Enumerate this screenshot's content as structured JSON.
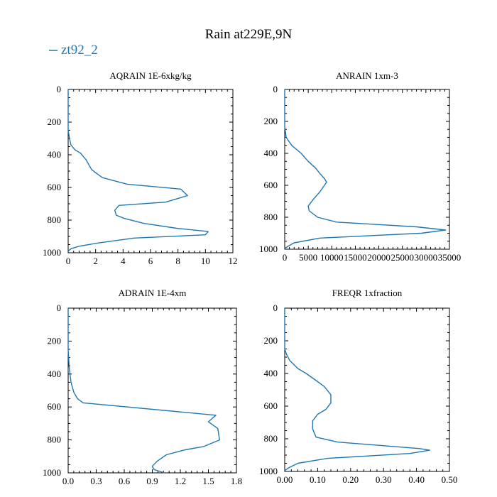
{
  "title": "Rain at229E,9N",
  "legend": {
    "label": "zt92_2",
    "color": "#1f77b4"
  },
  "chart_data": [
    {
      "type": "line",
      "title": "AQRAIN  1E-6xkg/kg",
      "xlim": [
        0,
        12
      ],
      "ylim": [
        0,
        1000
      ],
      "y_inverted": true,
      "x_ticks": [
        "0",
        "2",
        "4",
        "6",
        "8",
        "10",
        "12"
      ],
      "x_tick_values": [
        0,
        2,
        4,
        6,
        8,
        10,
        12
      ],
      "y_ticks": [
        "0",
        "200",
        "400",
        "600",
        "800",
        "1000"
      ],
      "y_tick_values": [
        0,
        200,
        400,
        600,
        800,
        1000
      ],
      "series": [
        {
          "name": "zt92_2",
          "x": [
            0,
            0,
            0.1,
            0.2,
            0.5,
            0.9,
            1.1,
            1.3,
            1.5,
            1.7,
            2.0,
            2.5,
            4.3,
            8.2,
            8.7,
            7.1,
            3.7,
            3.4,
            3.5,
            4.1,
            5.5,
            7.9,
            10.2,
            10.0,
            4.8,
            2.2,
            0.8,
            0.2,
            0
          ],
          "y": [
            0,
            250,
            300,
            340,
            370,
            390,
            410,
            430,
            460,
            490,
            510,
            540,
            580,
            610,
            650,
            690,
            710,
            740,
            770,
            790,
            820,
            850,
            870,
            890,
            910,
            940,
            960,
            975,
            990
          ]
        }
      ]
    },
    {
      "type": "line",
      "title": "ANRAIN  1xm-3",
      "xlim": [
        0,
        35000
      ],
      "ylim": [
        0,
        1000
      ],
      "y_inverted": true,
      "x_ticks": [
        "0",
        "5000",
        "10000",
        "15000",
        "20000",
        "25000",
        "30000",
        "35000"
      ],
      "x_tick_values": [
        0,
        5000,
        10000,
        15000,
        20000,
        25000,
        30000,
        35000
      ],
      "y_ticks": [
        "0",
        "200",
        "400",
        "600",
        "800",
        "1000"
      ],
      "y_tick_values": [
        0,
        200,
        400,
        600,
        800,
        1000
      ],
      "series": [
        {
          "name": "zt92_2",
          "x": [
            0,
            0,
            300,
            1500,
            3500,
            5000,
            6500,
            7600,
            8500,
            8900,
            7500,
            6000,
            5000,
            5200,
            7000,
            11000,
            28000,
            34200,
            29000,
            7500,
            2000,
            800,
            0
          ],
          "y": [
            0,
            230,
            300,
            350,
            400,
            450,
            490,
            530,
            560,
            580,
            640,
            690,
            730,
            760,
            800,
            830,
            860,
            880,
            900,
            930,
            960,
            980,
            995
          ]
        }
      ]
    },
    {
      "type": "line",
      "title": "ADRAIN  1E-4xm",
      "xlim": [
        0,
        1.8
      ],
      "ylim": [
        0,
        1000
      ],
      "y_inverted": true,
      "x_ticks": [
        "0.0",
        "0.3",
        "0.6",
        "0.9",
        "1.2",
        "1.5",
        "1.8"
      ],
      "x_tick_values": [
        0,
        0.3,
        0.6,
        0.9,
        1.2,
        1.5,
        1.8
      ],
      "y_ticks": [
        "0",
        "200",
        "400",
        "600",
        "800",
        "1000"
      ],
      "y_tick_values": [
        0,
        200,
        400,
        600,
        800,
        1000
      ],
      "series": [
        {
          "name": "zt92_2",
          "x": [
            0,
            0,
            0.01,
            0.03,
            0.06,
            0.1,
            0.16,
            1.58,
            1.5,
            1.6,
            1.62,
            1.45,
            1.25,
            1.05,
            0.95,
            0.9,
            0.92,
            1.03
          ],
          "y": [
            0,
            250,
            350,
            450,
            510,
            550,
            575,
            650,
            690,
            730,
            800,
            840,
            860,
            890,
            930,
            960,
            980,
            1000
          ]
        }
      ]
    },
    {
      "type": "line",
      "title": "FREQR  1xfraction",
      "xlim": [
        0,
        0.5
      ],
      "ylim": [
        0,
        1000
      ],
      "y_inverted": true,
      "x_ticks": [
        "0.00",
        "0.10",
        "0.20",
        "0.30",
        "0.40",
        "0.50"
      ],
      "x_tick_values": [
        0,
        0.1,
        0.2,
        0.3,
        0.4,
        0.5
      ],
      "y_ticks": [
        "0",
        "200",
        "400",
        "600",
        "800",
        "1000"
      ],
      "y_tick_values": [
        0,
        200,
        400,
        600,
        800,
        1000
      ],
      "series": [
        {
          "name": "zt92_2",
          "x": [
            0,
            0,
            0.005,
            0.015,
            0.04,
            0.065,
            0.1,
            0.12,
            0.14,
            0.14,
            0.125,
            0.1,
            0.085,
            0.085,
            0.095,
            0.16,
            0.41,
            0.44,
            0.38,
            0.13,
            0.04,
            0.01,
            0
          ],
          "y": [
            0,
            250,
            280,
            320,
            370,
            400,
            450,
            480,
            530,
            580,
            620,
            650,
            690,
            740,
            790,
            820,
            860,
            870,
            890,
            920,
            950,
            980,
            995
          ]
        }
      ]
    }
  ]
}
